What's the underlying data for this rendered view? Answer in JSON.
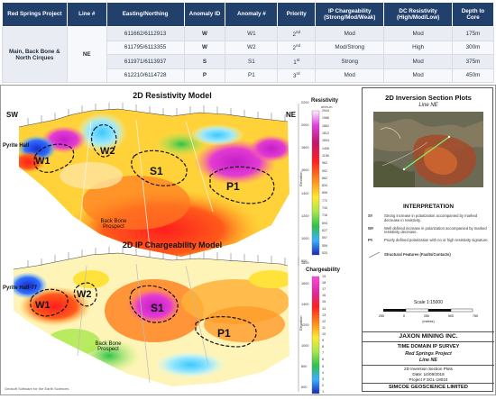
{
  "table": {
    "headers": [
      "Red Springs Project",
      "Line #",
      "Easting/Northing",
      "Anomaly ID",
      "Anomaly #",
      "Priority",
      "IP Chargeability (Strong/Mod/Weak)",
      "DC Resistivity (High/Mod/Low)",
      "Depth to Core"
    ],
    "project": "Main, Back Bone & North Cirques",
    "line": "NE",
    "rows": [
      {
        "en": "611662/6112913",
        "id": "W",
        "num": "W1",
        "pri": "2",
        "pri_sup": "nd",
        "ip": "Mod",
        "dc": "Mod",
        "depth": "175m"
      },
      {
        "en": "611795/6113355",
        "id": "W",
        "num": "W2",
        "pri": "2",
        "pri_sup": "nd",
        "ip": "Mod/Strong",
        "dc": "High",
        "depth": "300m"
      },
      {
        "en": "611971/6113937",
        "id": "S",
        "num": "S1",
        "pri": "1",
        "pri_sup": "st",
        "ip": "Strong",
        "dc": "Mod",
        "depth": "375m"
      },
      {
        "en": "612210/6114728",
        "id": "P",
        "num": "P1",
        "pri": "3",
        "pri_sup": "rd",
        "ip": "Mod",
        "dc": "Mod",
        "depth": "450m"
      }
    ]
  },
  "figure": {
    "resistivity": {
      "title": "2D Resistivity Model",
      "sw": "SW",
      "ne": "NE",
      "labels": {
        "pyrite": "Pyrite Hall",
        "w1": "W1",
        "w2": "W2",
        "s1": "S1",
        "p1": "P1",
        "backbone": "Back Bone\nProspect"
      },
      "scale_title": "Resistivity",
      "scale_unit": "ohm-m",
      "scale_values": [
        "2944",
        "1986",
        "1862",
        "1812",
        "1694",
        "1406",
        "1156",
        "962",
        "902",
        "862",
        "834",
        "806",
        "772",
        "744",
        "716",
        "694",
        "627",
        "597",
        "559",
        "533"
      ],
      "elev_ticks": [
        "2200",
        "2000",
        "1800",
        "1600",
        "1400",
        "1200",
        "1000",
        "800"
      ],
      "elev_label": "Elevation"
    },
    "chargeability": {
      "title": "2D IP Chargeability Model",
      "labels": {
        "pyrite": "Pyrite Hall-77",
        "w1": "W1",
        "w2": "W2",
        "s1": "S1",
        "p1": "P1",
        "backbone": "Back Bone\nProspect"
      },
      "scale_title": "Chargeability",
      "scale_values": [
        "19",
        "18",
        "17",
        "16",
        "15",
        "14",
        "13",
        "12",
        "11",
        "10",
        "9",
        "8",
        "7",
        "6",
        "5",
        "4",
        "3",
        "2",
        "1"
      ],
      "elev_ticks": [
        "1800",
        "1600",
        "1400",
        "1200",
        "1000",
        "800",
        "600"
      ],
      "elev_label": "Elevation"
    },
    "footer_note": "Geosoft Software for the Earth Sciences",
    "sidebox": {
      "title": "2D Inversion Section Plots",
      "subtitle": "Line NE",
      "interp_title": "INTERPRETATION",
      "legend": [
        {
          "key": "S#",
          "text": "Strong increase in polarization accompanied by marked decrease in resistivity."
        },
        {
          "key": "W#",
          "text": "Well defined increase in polarization accompanied by marked resistivity decrease."
        },
        {
          "key": "P#",
          "text": "Poorly defined polarization with no or high resistivity signature."
        },
        {
          "key": "",
          "text": "Structural Features (Faults/Contacts)"
        }
      ],
      "scale_label": "Scale 1:15000",
      "scale_ticks": [
        "250",
        "0",
        "250",
        "500",
        "750"
      ],
      "scale_unit": "(metres)",
      "company": "JAXON MINING INC.",
      "survey": "TIME DOMAIN IP SURVEY",
      "project": "Red Springs Project",
      "line": "Line NE",
      "plot": "2D Inversion Section Plots",
      "date": "Date: 14/09/2018",
      "project_no": "Project # SGL-18024",
      "contractor": "SIMCOE GEOSCIENCE LIMITED"
    }
  }
}
